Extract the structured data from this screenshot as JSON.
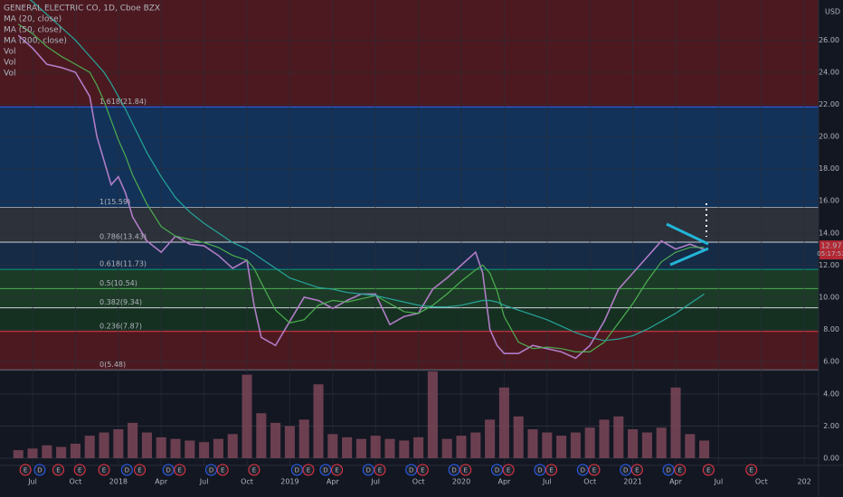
{
  "chart_data": {
    "type": "line",
    "title": "GENERAL ELECTRIC CO, 1D, Cboe BZX",
    "indicators": [
      "MA (20, close)",
      "MA (50, close)",
      "MA (200, close)",
      "Vol",
      "Vol",
      "Vol"
    ],
    "currency": "USD",
    "last_price": 12.97,
    "countdown": "05:17:53",
    "xlim": [
      3.72,
      61
    ],
    "xticks": [
      {
        "value": 6,
        "label": "Jul"
      },
      {
        "value": 9,
        "label": "Oct"
      },
      {
        "value": 12,
        "label": "2018"
      },
      {
        "value": 15,
        "label": "Apr"
      },
      {
        "value": 18,
        "label": "Jul"
      },
      {
        "value": 21,
        "label": "Oct"
      },
      {
        "value": 24,
        "label": "2019"
      },
      {
        "value": 27,
        "label": "Apr"
      },
      {
        "value": 30,
        "label": "Jul"
      },
      {
        "value": 33,
        "label": "Oct"
      },
      {
        "value": 36,
        "label": "2020"
      },
      {
        "value": 39,
        "label": "Apr"
      },
      {
        "value": 42,
        "label": "Jul"
      },
      {
        "value": 45,
        "label": "Oct"
      },
      {
        "value": 48,
        "label": "2021"
      },
      {
        "value": 51,
        "label": "Apr"
      },
      {
        "value": 54,
        "label": "Jul"
      },
      {
        "value": 57,
        "label": "Oct"
      },
      {
        "value": 60,
        "label": "202"
      }
    ],
    "ylim": [
      5.44,
      28.5
    ],
    "yticks": [
      {
        "value": 6,
        "label": "6.00"
      },
      {
        "value": 8,
        "label": "8.00"
      },
      {
        "value": 10,
        "label": "10.00"
      },
      {
        "value": 12,
        "label": "12.00"
      },
      {
        "value": 14,
        "label": "14.00"
      },
      {
        "value": 16,
        "label": "16.00"
      },
      {
        "value": 18,
        "label": "18.00"
      },
      {
        "value": 20,
        "label": "20.00"
      },
      {
        "value": 22,
        "label": "22.00"
      },
      {
        "value": 24,
        "label": "24.00"
      },
      {
        "value": 26,
        "label": "26.00"
      }
    ],
    "fib_levels": [
      {
        "value": 5.48,
        "label": "0(5.48)",
        "color": "#787b86",
        "zone_color": "#b71c1c"
      },
      {
        "value": 7.87,
        "label": "0.236(7.87)",
        "color": "#f23645",
        "zone_color": "#1b5e20"
      },
      {
        "value": 9.34,
        "label": "0.382(9.34)",
        "color": "#d1d4dc",
        "zone_color": "#2e7d32"
      },
      {
        "value": 10.54,
        "label": "0.5(10.54)",
        "color": "#4caf50",
        "zone_color": "#2e7d32"
      },
      {
        "value": 11.73,
        "label": "0.618(11.73)",
        "color": "#089981",
        "zone_color": "#1e4f8a"
      },
      {
        "value": 13.43,
        "label": "0.786(13.43)",
        "color": "#d1d4dc",
        "zone_color": "#5d6068"
      },
      {
        "value": 15.59,
        "label": "1(15.59)",
        "color": "#9598a1",
        "zone_color": "#1565c0"
      },
      {
        "value": 21.84,
        "label": "1.618(21.84)",
        "color": "#2962ff",
        "zone_color": "#b71c1c"
      }
    ],
    "x": [
      5,
      6,
      7,
      8,
      9,
      10,
      10.5,
      11,
      11.5,
      12,
      12.5,
      13,
      14,
      15,
      16,
      17,
      18,
      19,
      20,
      21,
      21.5,
      22,
      23,
      24,
      25,
      26,
      27,
      28,
      29,
      30,
      31,
      32,
      33,
      34,
      35,
      36,
      37,
      37.5,
      38,
      38.5,
      39,
      40,
      41,
      42,
      43,
      44,
      45,
      46,
      47,
      48,
      49,
      50,
      51,
      52,
      53
    ],
    "series": [
      {
        "name": "Price",
        "color": "#b07cc6",
        "values": [
          26.3,
          25.5,
          24.5,
          24.3,
          24.0,
          22.5,
          20,
          18.5,
          17,
          17.5,
          16.5,
          15,
          13.5,
          12.8,
          13.8,
          13.3,
          13.2,
          12.6,
          11.8,
          12.3,
          9.5,
          7.5,
          7,
          8.5,
          10,
          9.8,
          9.3,
          9.8,
          10.2,
          10.2,
          8.3,
          8.8,
          9,
          10.5,
          11.2,
          12,
          12.8,
          11.5,
          8,
          7,
          6.5,
          6.5,
          7,
          6.8,
          6.6,
          6.2,
          7,
          8.5,
          10.5,
          11.5,
          12.5,
          13.5,
          13,
          13.3,
          12.97
        ]
      },
      {
        "name": "MA (50, close)",
        "color": "#4caf50",
        "values": [
          27,
          26.4,
          25.6,
          25,
          24.5,
          24,
          23.2,
          22.2,
          21,
          19.8,
          18.8,
          17.6,
          15.8,
          14.4,
          13.8,
          13.6,
          13.4,
          13.1,
          12.6,
          12.3,
          11.8,
          10.9,
          9.2,
          8.4,
          8.6,
          9.5,
          9.8,
          9.7,
          9.9,
          10.1,
          9.6,
          9.1,
          9,
          9.5,
          10.2,
          11,
          11.7,
          12,
          11.5,
          10.4,
          8.8,
          7.2,
          6.8,
          6.9,
          6.8,
          6.6,
          6.6,
          7.2,
          8.4,
          9.6,
          11,
          12.2,
          12.8,
          13.1,
          13.1
        ]
      },
      {
        "name": "MA (200, close)",
        "color": "#26a69a",
        "values": [
          29,
          28.4,
          27.6,
          26.8,
          26,
          25,
          24.5,
          24,
          23.3,
          22.5,
          21.7,
          20.8,
          19,
          17.5,
          16.2,
          15.3,
          14.6,
          14,
          13.4,
          13,
          12.7,
          12.4,
          11.8,
          11.2,
          10.9,
          10.6,
          10.5,
          10.3,
          10.2,
          10.1,
          9.9,
          9.7,
          9.5,
          9.4,
          9.4,
          9.5,
          9.7,
          9.8,
          9.8,
          9.7,
          9.5,
          9.2,
          8.9,
          8.6,
          8.2,
          7.8,
          7.5,
          7.3,
          7.4,
          7.6,
          8,
          8.5,
          9,
          9.6,
          10.2
        ]
      }
    ],
    "volume": {
      "color": "#7d4658",
      "ylim": [
        -0.45,
        5.46
      ],
      "yticks": [
        {
          "value": 0,
          "label": "0.00"
        },
        {
          "value": 2,
          "label": "2.00"
        },
        {
          "value": 4,
          "label": "4.00"
        }
      ],
      "x": [
        5,
        6,
        7,
        8,
        9,
        10,
        11,
        12,
        13,
        14,
        15,
        16,
        17,
        18,
        19,
        20,
        21,
        22,
        23,
        24,
        25,
        26,
        27,
        28,
        29,
        30,
        31,
        32,
        33,
        34,
        35,
        36,
        37,
        38,
        39,
        40,
        41,
        42,
        43,
        44,
        45,
        46,
        47,
        48,
        49,
        50,
        51,
        52,
        53
      ],
      "values": [
        0.5,
        0.6,
        0.8,
        0.7,
        0.9,
        1.4,
        1.6,
        1.8,
        2.2,
        1.6,
        1.3,
        1.2,
        1.1,
        1.0,
        1.2,
        1.5,
        5.2,
        2.8,
        2.2,
        2.0,
        2.4,
        4.6,
        1.5,
        1.3,
        1.2,
        1.4,
        1.2,
        1.1,
        1.3,
        5.4,
        1.2,
        1.4,
        1.6,
        2.4,
        4.4,
        2.6,
        1.8,
        1.6,
        1.4,
        1.6,
        1.9,
        2.4,
        2.6,
        1.8,
        1.6,
        1.9,
        4.4,
        1.5,
        1.1
      ]
    },
    "events": [
      {
        "x": 5.5,
        "label": "E"
      },
      {
        "x": 6.5,
        "label": "D"
      },
      {
        "x": 7.8,
        "label": "E"
      },
      {
        "x": 9.3,
        "label": "E"
      },
      {
        "x": 11,
        "label": "E"
      },
      {
        "x": 12.6,
        "label": "D"
      },
      {
        "x": 13.5,
        "label": "E"
      },
      {
        "x": 15.5,
        "label": "D"
      },
      {
        "x": 16.3,
        "label": "E"
      },
      {
        "x": 18.5,
        "label": "D"
      },
      {
        "x": 19.3,
        "label": "E"
      },
      {
        "x": 21.5,
        "label": "E"
      },
      {
        "x": 24.5,
        "label": "D"
      },
      {
        "x": 25.3,
        "label": "E"
      },
      {
        "x": 26.5,
        "label": "D"
      },
      {
        "x": 27.3,
        "label": "E"
      },
      {
        "x": 29.5,
        "label": "D"
      },
      {
        "x": 30.3,
        "label": "E"
      },
      {
        "x": 32.5,
        "label": "D"
      },
      {
        "x": 33.3,
        "label": "E"
      },
      {
        "x": 35.5,
        "label": "D"
      },
      {
        "x": 36.3,
        "label": "E"
      },
      {
        "x": 38.5,
        "label": "D"
      },
      {
        "x": 39.3,
        "label": "E"
      },
      {
        "x": 41.5,
        "label": "D"
      },
      {
        "x": 42.3,
        "label": "E"
      },
      {
        "x": 44.5,
        "label": "D"
      },
      {
        "x": 45.3,
        "label": "E"
      },
      {
        "x": 47.5,
        "label": "D"
      },
      {
        "x": 48.3,
        "label": "E"
      },
      {
        "x": 50.5,
        "label": "D"
      },
      {
        "x": 51.3,
        "label": "E"
      },
      {
        "x": 53.3,
        "label": "E"
      },
      {
        "x": 56.3,
        "label": "E"
      }
    ]
  }
}
